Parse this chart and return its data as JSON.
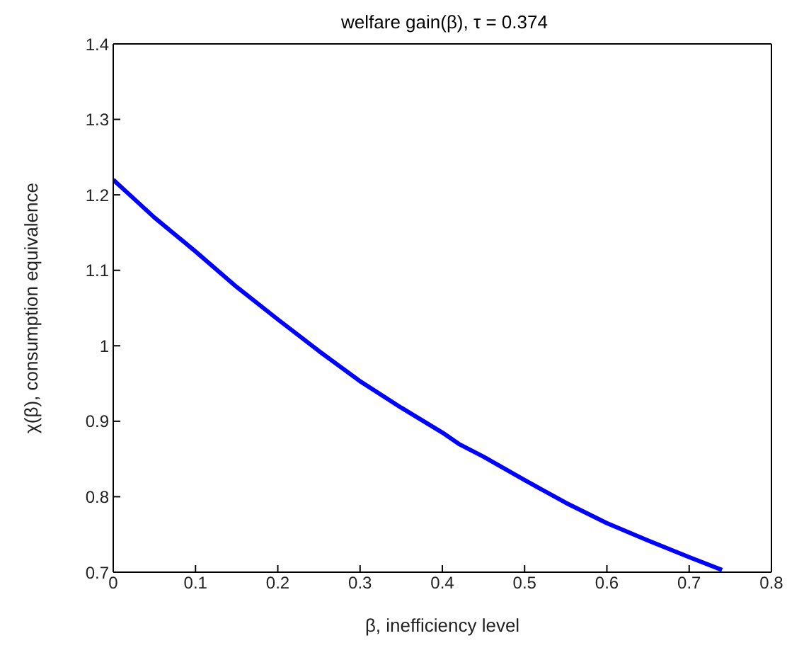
{
  "chart_data": {
    "type": "line",
    "title": "welfare gain(β), τ = 0.374",
    "xlabel": "β, inefficiency level",
    "ylabel": "χ(β), consumption equivalence",
    "x": [
      0,
      0.02,
      0.05,
      0.1,
      0.15,
      0.2,
      0.25,
      0.3,
      0.35,
      0.4,
      0.42,
      0.45,
      0.5,
      0.55,
      0.6,
      0.65,
      0.7,
      0.74
    ],
    "series": [
      {
        "color": "#0000ff",
        "values": [
          1.22,
          1.2,
          1.17,
          1.125,
          1.078,
          1.035,
          0.993,
          0.953,
          0.918,
          0.885,
          0.87,
          0.853,
          0.822,
          0.792,
          0.765,
          0.742,
          0.72,
          0.703
        ]
      }
    ],
    "xlim": [
      0,
      0.8
    ],
    "xticks": [
      0,
      0.1,
      0.2,
      0.3,
      0.4,
      0.5,
      0.6,
      0.7,
      0.8
    ],
    "ylim": [
      0.7,
      1.4
    ],
    "yticks": [
      0.7,
      0.8,
      0.9,
      1,
      1.1,
      1.2,
      1.3,
      1.4
    ],
    "grid": false,
    "legend": false,
    "marker": "none",
    "line_style": "solid"
  }
}
